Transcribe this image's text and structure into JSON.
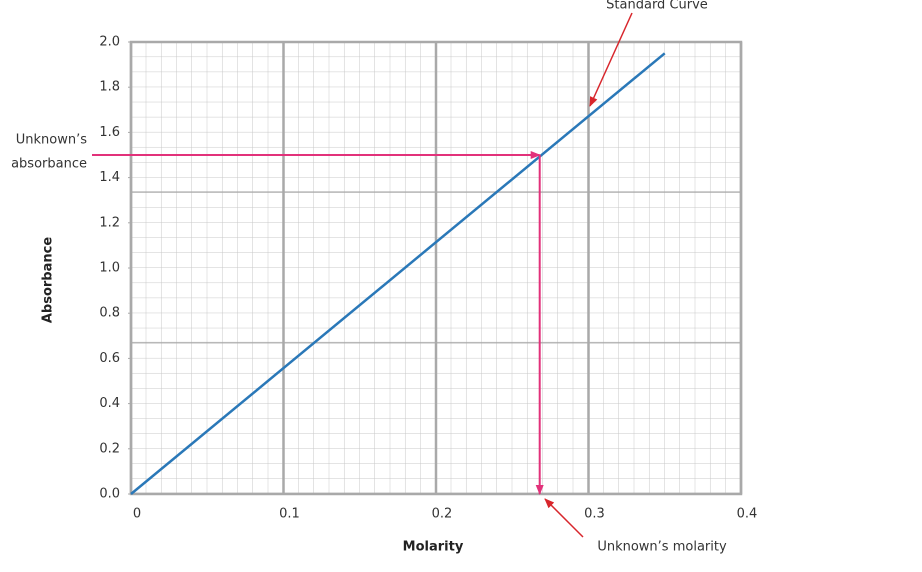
{
  "chart_data": {
    "type": "line",
    "xlabel": "Molarity",
    "ylabel": "Absorbance",
    "x": [
      0,
      0.35
    ],
    "series": [
      {
        "name": "Standard Curve",
        "color": "#2a78b8",
        "values": [
          0,
          1.95
        ]
      }
    ],
    "xlim": [
      0,
      0.4
    ],
    "xticks": [
      0,
      0.1,
      0.2,
      0.3,
      0.4
    ],
    "ylim": [
      0,
      2
    ],
    "yticks": [
      {
        "value": 0,
        "label": "0.0"
      },
      0.2,
      0.4,
      0.6,
      0.8,
      {
        "value": 1,
        "label": "1.0"
      },
      1.2,
      1.4,
      1.6,
      1.8,
      {
        "value": 2,
        "label": "2.0"
      }
    ],
    "grid": true,
    "unknown": {
      "x": 0.268,
      "y": 1.5,
      "color": "#e2317a",
      "absorbance_label": [
        "Unknown’s",
        "absorbance"
      ],
      "molarity_label": "Unknown’s molarity"
    }
  }
}
